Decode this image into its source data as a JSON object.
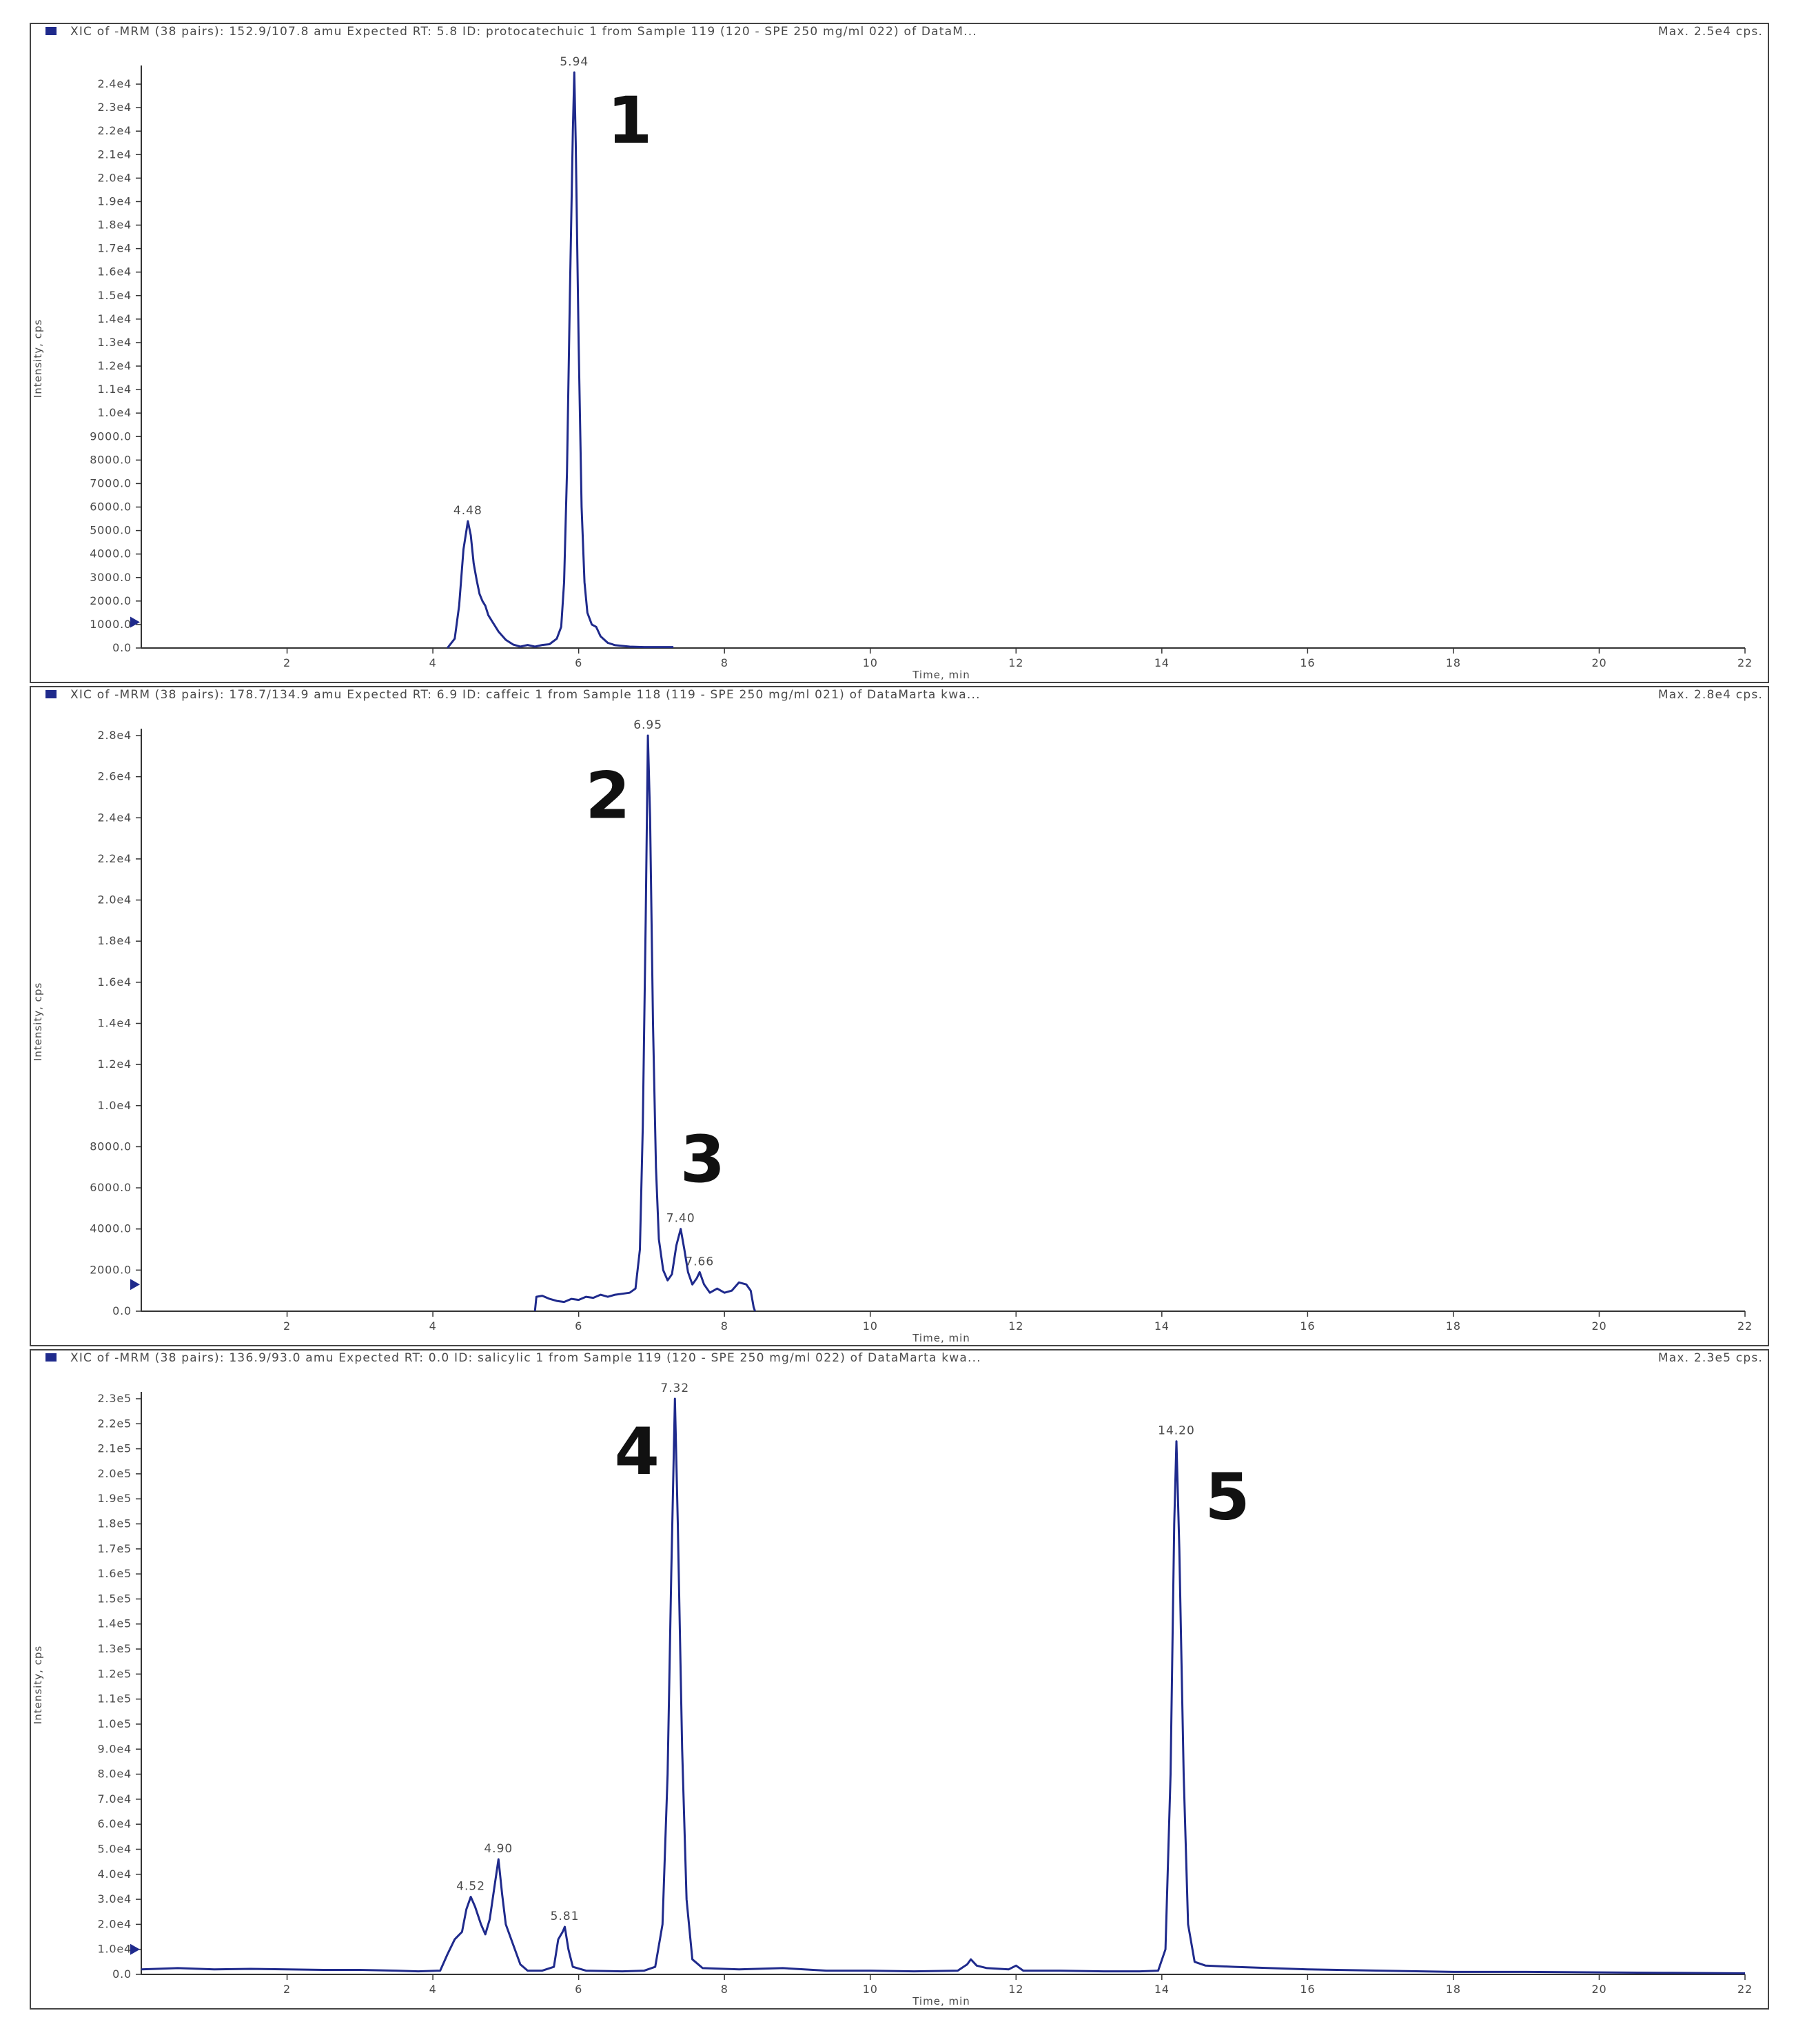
{
  "colors": {
    "trace": "#1f2a8c",
    "frame": "#444444",
    "axis": "#333333",
    "text": "#4a4a4a",
    "marker": "#1f2a8c"
  },
  "chart_data": [
    {
      "type": "line",
      "title": "XIC of -MRM (38 pairs): 152.9/107.8 amu Expected RT: 5.8 ID: protocatechuic 1 from Sample 119 (120 - SPE 250 mg/ml 022) of DataM...",
      "max_label": "Max. 2.5e4 cps.",
      "xlabel": "Time, min",
      "ylabel": "Intensity, cps",
      "xlim": [
        0,
        22
      ],
      "ylim": [
        0,
        24500
      ],
      "grid": false,
      "x_ticks": [
        2,
        4,
        6,
        8,
        10,
        12,
        14,
        16,
        18,
        20,
        22
      ],
      "x_tick_labels": [
        "2",
        "4",
        "6",
        "8",
        "10",
        "12",
        "14",
        "16",
        "18",
        "20",
        "22"
      ],
      "y_ticks": [
        0,
        1000,
        2000,
        3000,
        4000,
        5000,
        6000,
        7000,
        8000,
        9000,
        10000,
        11000,
        12000,
        13000,
        14000,
        15000,
        16000,
        17000,
        18000,
        19000,
        20000,
        21000,
        22000,
        23000,
        24000
      ],
      "y_tick_labels": [
        "0.0",
        "1000.0",
        "2000.0",
        "3000.0",
        "4000.0",
        "5000.0",
        "6000.0",
        "7000.0",
        "8000.0",
        "9000.0",
        "1.0e4",
        "1.1e4",
        "1.2e4",
        "1.3e4",
        "1.4e4",
        "1.5e4",
        "1.6e4",
        "1.7e4",
        "1.8e4",
        "1.9e4",
        "2.0e4",
        "2.1e4",
        "2.2e4",
        "2.3e4",
        "2.4e4"
      ],
      "baseline_marker_y": 1100,
      "peaks": [
        {
          "x": 4.48,
          "y": 5400,
          "label": "4.48"
        },
        {
          "x": 5.94,
          "y": 24500,
          "label": "5.94"
        }
      ],
      "annotations": [
        {
          "text": "1",
          "x": 6.7,
          "y": 21500
        }
      ],
      "series": [
        {
          "values": [
            [
              4.2,
              0
            ],
            [
              4.3,
              400
            ],
            [
              4.36,
              1800
            ],
            [
              4.42,
              4200
            ],
            [
              4.48,
              5400
            ],
            [
              4.52,
              4800
            ],
            [
              4.56,
              3600
            ],
            [
              4.6,
              2900
            ],
            [
              4.64,
              2300
            ],
            [
              4.68,
              2000
            ],
            [
              4.72,
              1800
            ],
            [
              4.76,
              1400
            ],
            [
              4.82,
              1100
            ],
            [
              4.9,
              700
            ],
            [
              5.0,
              350
            ],
            [
              5.1,
              150
            ],
            [
              5.2,
              60
            ],
            [
              5.3,
              130
            ],
            [
              5.4,
              60
            ],
            [
              5.5,
              130
            ],
            [
              5.6,
              160
            ],
            [
              5.7,
              400
            ],
            [
              5.76,
              900
            ],
            [
              5.8,
              2800
            ],
            [
              5.84,
              7500
            ],
            [
              5.88,
              15000
            ],
            [
              5.92,
              22000
            ],
            [
              5.94,
              24500
            ],
            [
              5.96,
              21500
            ],
            [
              6.0,
              13000
            ],
            [
              6.04,
              6000
            ],
            [
              6.08,
              2800
            ],
            [
              6.12,
              1500
            ],
            [
              6.18,
              1000
            ],
            [
              6.24,
              900
            ],
            [
              6.3,
              500
            ],
            [
              6.4,
              220
            ],
            [
              6.5,
              120
            ],
            [
              6.7,
              60
            ],
            [
              6.9,
              40
            ],
            [
              7.3,
              40
            ]
          ]
        }
      ]
    },
    {
      "type": "line",
      "title": "XIC of -MRM (38 pairs): 178.7/134.9 amu Expected RT: 6.9 ID: caffeic 1 from Sample 118 (119 - SPE 250 mg/ml 021) of DataMarta kwa...",
      "max_label": "Max. 2.8e4 cps.",
      "xlabel": "Time, min",
      "ylabel": "Intensity, cps",
      "xlim": [
        0,
        22
      ],
      "ylim": [
        0,
        28000
      ],
      "grid": false,
      "x_ticks": [
        2,
        4,
        6,
        8,
        10,
        12,
        14,
        16,
        18,
        20,
        22
      ],
      "x_tick_labels": [
        "2",
        "4",
        "6",
        "8",
        "10",
        "12",
        "14",
        "16",
        "18",
        "20",
        "22"
      ],
      "y_ticks": [
        0,
        2000,
        4000,
        6000,
        8000,
        10000,
        12000,
        14000,
        16000,
        18000,
        20000,
        22000,
        24000,
        26000,
        28000
      ],
      "y_tick_labels": [
        "0.0",
        "2000.0",
        "4000.0",
        "6000.0",
        "8000.0",
        "1.0e4",
        "1.2e4",
        "1.4e4",
        "1.6e4",
        "1.8e4",
        "2.0e4",
        "2.2e4",
        "2.4e4",
        "2.6e4",
        "2.8e4"
      ],
      "baseline_marker_y": 1300,
      "peaks": [
        {
          "x": 6.95,
          "y": 28000,
          "label": "6.95"
        },
        {
          "x": 7.4,
          "y": 4000,
          "label": "7.40"
        },
        {
          "x": 7.66,
          "y": 1900,
          "label": "7.66"
        }
      ],
      "annotations": [
        {
          "text": "2",
          "x": 6.4,
          "y": 24000
        },
        {
          "text": "3",
          "x": 7.7,
          "y": 6300
        }
      ],
      "series": [
        {
          "values": [
            [
              5.4,
              0
            ],
            [
              5.42,
              700
            ],
            [
              5.5,
              750
            ],
            [
              5.6,
              600
            ],
            [
              5.7,
              500
            ],
            [
              5.8,
              450
            ],
            [
              5.9,
              600
            ],
            [
              6.0,
              550
            ],
            [
              6.1,
              700
            ],
            [
              6.2,
              650
            ],
            [
              6.3,
              800
            ],
            [
              6.4,
              700
            ],
            [
              6.5,
              800
            ],
            [
              6.6,
              850
            ],
            [
              6.7,
              900
            ],
            [
              6.78,
              1100
            ],
            [
              6.84,
              3000
            ],
            [
              6.88,
              9000
            ],
            [
              6.92,
              19000
            ],
            [
              6.95,
              28000
            ],
            [
              6.98,
              24000
            ],
            [
              7.02,
              14000
            ],
            [
              7.06,
              7000
            ],
            [
              7.1,
              3500
            ],
            [
              7.16,
              2000
            ],
            [
              7.22,
              1500
            ],
            [
              7.28,
              1800
            ],
            [
              7.34,
              3200
            ],
            [
              7.4,
              4000
            ],
            [
              7.45,
              3000
            ],
            [
              7.5,
              1900
            ],
            [
              7.56,
              1300
            ],
            [
              7.62,
              1600
            ],
            [
              7.66,
              1900
            ],
            [
              7.72,
              1300
            ],
            [
              7.8,
              900
            ],
            [
              7.9,
              1100
            ],
            [
              8.0,
              900
            ],
            [
              8.1,
              1000
            ],
            [
              8.2,
              1400
            ],
            [
              8.3,
              1300
            ],
            [
              8.36,
              1000
            ],
            [
              8.4,
              200
            ],
            [
              8.42,
              0
            ]
          ]
        }
      ]
    },
    {
      "type": "line",
      "title": "XIC of -MRM (38 pairs): 136.9/93.0 amu Expected RT: 0.0 ID: salicylic 1 from Sample 119 (120 - SPE 250 mg/ml 022) of DataMarta kwa...",
      "max_label": "Max. 2.3e5 cps.",
      "xlabel": "Time, min",
      "ylabel": "Intensity, cps",
      "xlim": [
        0,
        22
      ],
      "ylim": [
        0,
        230000
      ],
      "grid": false,
      "x_ticks": [
        2,
        4,
        6,
        8,
        10,
        12,
        14,
        16,
        18,
        20,
        22
      ],
      "x_tick_labels": [
        "2",
        "4",
        "6",
        "8",
        "10",
        "12",
        "14",
        "16",
        "18",
        "20",
        "22"
      ],
      "y_ticks": [
        0,
        10000,
        20000,
        30000,
        40000,
        50000,
        60000,
        70000,
        80000,
        90000,
        100000,
        110000,
        120000,
        130000,
        140000,
        150000,
        160000,
        170000,
        180000,
        190000,
        200000,
        210000,
        220000,
        230000
      ],
      "y_tick_labels": [
        "0.0",
        "1.0e4",
        "2.0e4",
        "3.0e4",
        "4.0e4",
        "5.0e4",
        "6.0e4",
        "7.0e4",
        "8.0e4",
        "9.0e4",
        "1.0e5",
        "1.1e5",
        "1.2e5",
        "1.3e5",
        "1.4e5",
        "1.5e5",
        "1.6e5",
        "1.7e5",
        "1.8e5",
        "1.9e5",
        "2.0e5",
        "2.1e5",
        "2.2e5",
        "2.3e5"
      ],
      "baseline_marker_y": 10000,
      "peaks": [
        {
          "x": 4.52,
          "y": 31000,
          "label": "4.52"
        },
        {
          "x": 4.9,
          "y": 46000,
          "label": "4.90"
        },
        {
          "x": 5.81,
          "y": 19000,
          "label": "5.81"
        },
        {
          "x": 7.32,
          "y": 230000,
          "label": "7.32"
        },
        {
          "x": 14.2,
          "y": 213000,
          "label": "14.20"
        }
      ],
      "annotations": [
        {
          "text": "4",
          "x": 6.8,
          "y": 200000
        },
        {
          "text": "5",
          "x": 14.9,
          "y": 182000
        }
      ],
      "series": [
        {
          "values": [
            [
              0.0,
              2000
            ],
            [
              0.5,
              2500
            ],
            [
              1.0,
              2000
            ],
            [
              1.5,
              2200
            ],
            [
              2.0,
              2000
            ],
            [
              2.5,
              1800
            ],
            [
              3.0,
              1800
            ],
            [
              3.5,
              1500
            ],
            [
              3.8,
              1200
            ],
            [
              4.1,
              1500
            ],
            [
              4.2,
              8000
            ],
            [
              4.3,
              14000
            ],
            [
              4.4,
              17000
            ],
            [
              4.46,
              26000
            ],
            [
              4.52,
              31000
            ],
            [
              4.58,
              27000
            ],
            [
              4.66,
              20000
            ],
            [
              4.72,
              16000
            ],
            [
              4.78,
              22000
            ],
            [
              4.84,
              34000
            ],
            [
              4.9,
              46000
            ],
            [
              4.95,
              32000
            ],
            [
              5.0,
              20000
            ],
            [
              5.1,
              12000
            ],
            [
              5.2,
              4000
            ],
            [
              5.3,
              1500
            ],
            [
              5.5,
              1500
            ],
            [
              5.66,
              3000
            ],
            [
              5.72,
              14000
            ],
            [
              5.78,
              17000
            ],
            [
              5.81,
              19000
            ],
            [
              5.86,
              10000
            ],
            [
              5.92,
              3000
            ],
            [
              6.1,
              1500
            ],
            [
              6.6,
              1200
            ],
            [
              6.9,
              1500
            ],
            [
              7.05,
              3000
            ],
            [
              7.15,
              20000
            ],
            [
              7.22,
              80000
            ],
            [
              7.27,
              160000
            ],
            [
              7.32,
              230000
            ],
            [
              7.36,
              180000
            ],
            [
              7.42,
              90000
            ],
            [
              7.48,
              30000
            ],
            [
              7.56,
              6000
            ],
            [
              7.7,
              2500
            ],
            [
              8.2,
              2000
            ],
            [
              8.8,
              2500
            ],
            [
              9.4,
              1500
            ],
            [
              10.0,
              1500
            ],
            [
              10.6,
              1200
            ],
            [
              11.2,
              1500
            ],
            [
              11.33,
              4000
            ],
            [
              11.38,
              6000
            ],
            [
              11.46,
              3500
            ],
            [
              11.6,
              2500
            ],
            [
              11.9,
              2000
            ],
            [
              12.0,
              3500
            ],
            [
              12.1,
              1500
            ],
            [
              12.6,
              1500
            ],
            [
              13.2,
              1200
            ],
            [
              13.7,
              1200
            ],
            [
              13.95,
              1500
            ],
            [
              14.05,
              10000
            ],
            [
              14.12,
              80000
            ],
            [
              14.17,
              180000
            ],
            [
              14.2,
              213000
            ],
            [
              14.24,
              170000
            ],
            [
              14.3,
              80000
            ],
            [
              14.36,
              20000
            ],
            [
              14.45,
              5000
            ],
            [
              14.6,
              3500
            ],
            [
              15.0,
              3000
            ],
            [
              16.0,
              2000
            ],
            [
              17.0,
              1500
            ],
            [
              18.0,
              1000
            ],
            [
              19.0,
              1000
            ],
            [
              20.0,
              800
            ],
            [
              21.0,
              600
            ],
            [
              22.0,
              400
            ]
          ]
        }
      ]
    }
  ]
}
